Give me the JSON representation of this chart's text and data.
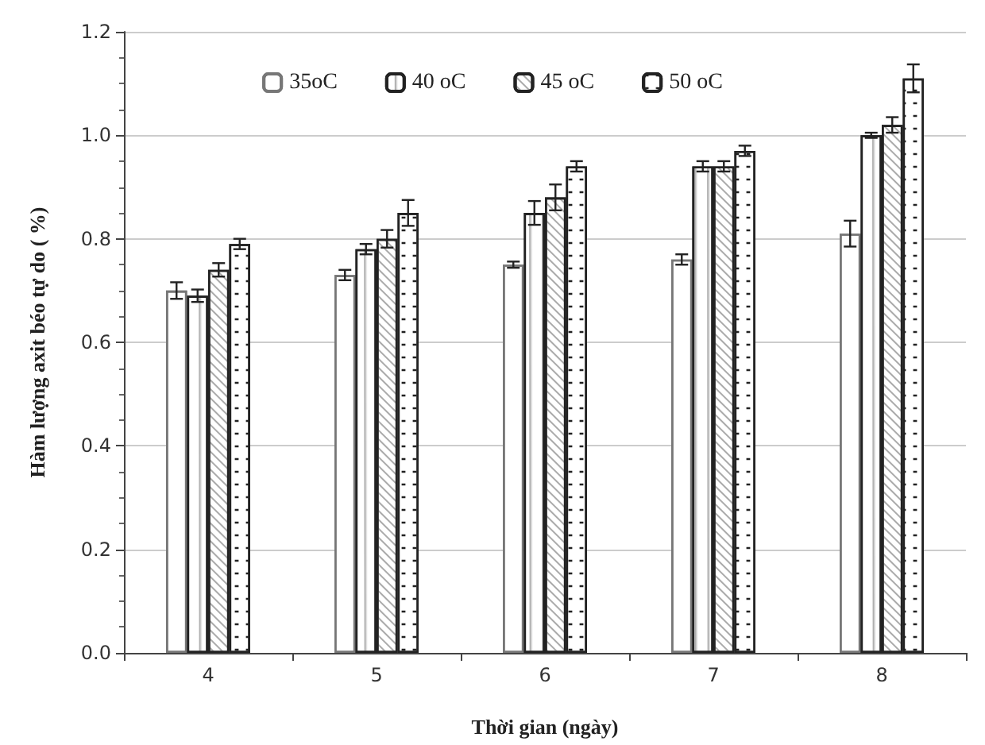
{
  "chart_data": {
    "type": "bar",
    "xlabel": "Thời gian (ngày)",
    "ylabel": "Hàm lượng axit béo tự do ( %)",
    "categories": [
      "4",
      "5",
      "6",
      "7",
      "8"
    ],
    "series": [
      {
        "name": "35oC",
        "color": "#ffffff",
        "values": [
          0.7,
          0.73,
          0.75,
          0.76,
          0.81
        ],
        "errors": [
          0.016,
          0.01,
          0.006,
          0.01,
          0.025
        ]
      },
      {
        "name": "40 oC",
        "color": "#ffffff",
        "values": [
          0.69,
          0.78,
          0.85,
          0.94,
          1.0
        ],
        "errors": [
          0.012,
          0.01,
          0.023,
          0.01,
          0.005
        ]
      },
      {
        "name": "45 oC",
        "color": "#ffffff",
        "values": [
          0.74,
          0.8,
          0.88,
          0.94,
          1.02
        ],
        "errors": [
          0.013,
          0.017,
          0.025,
          0.01,
          0.015
        ]
      },
      {
        "name": "50 oC",
        "color": "#ffffff",
        "values": [
          0.79,
          0.85,
          0.94,
          0.97,
          1.11
        ],
        "errors": [
          0.01,
          0.025,
          0.01,
          0.01,
          0.027
        ]
      }
    ],
    "ylim": [
      0,
      1.2
    ],
    "yticks": [
      {
        "value": 0,
        "label": "0.0"
      },
      0.2,
      0.4,
      0.6,
      0.8,
      {
        "value": 1,
        "label": "1.0"
      },
      1.2
    ],
    "grid": "y",
    "legend": "top"
  }
}
